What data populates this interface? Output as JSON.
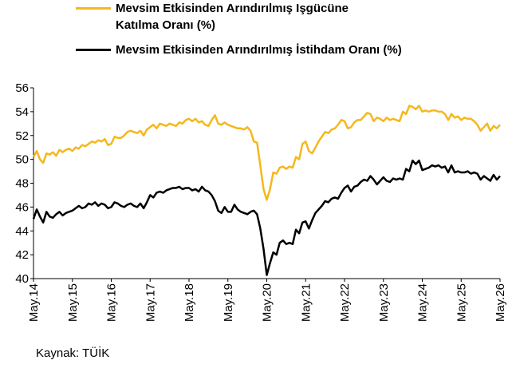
{
  "chart_data": {
    "type": "line",
    "source": "Kaynak: TÜİK",
    "categories": [
      "May.14",
      null,
      null,
      null,
      null,
      null,
      null,
      null,
      null,
      null,
      null,
      null,
      "May.15",
      null,
      null,
      null,
      null,
      null,
      null,
      null,
      null,
      null,
      null,
      null,
      "May.16",
      null,
      null,
      null,
      null,
      null,
      null,
      null,
      null,
      null,
      null,
      null,
      "May.17",
      null,
      null,
      null,
      null,
      null,
      null,
      null,
      null,
      null,
      null,
      null,
      "May.18",
      null,
      null,
      null,
      null,
      null,
      null,
      null,
      null,
      null,
      null,
      null,
      "May.19",
      null,
      null,
      null,
      null,
      null,
      null,
      null,
      null,
      null,
      null,
      null,
      "May.20",
      null,
      null,
      null,
      null,
      null,
      null,
      null,
      null,
      null,
      null,
      null,
      "May.21",
      null,
      null,
      null,
      null,
      null,
      null,
      null,
      null,
      null,
      null,
      null,
      "May.22",
      null,
      null,
      null,
      null,
      null,
      null,
      null,
      null,
      null,
      null,
      null,
      "May.23",
      null,
      null,
      null,
      null,
      null,
      null,
      null,
      null,
      null,
      null,
      null,
      "May.24",
      null,
      null,
      null,
      null,
      null,
      null,
      null,
      null,
      null,
      null,
      null,
      "May.25",
      null,
      null,
      null,
      null,
      null,
      null,
      null,
      null,
      null,
      null,
      null,
      "May.26"
    ],
    "series": [
      {
        "name": "Mevsim Etkisinden Arındırılmış Işgücüne Katılma Oranı (%)",
        "color": "#f5b81c",
        "values": [
          50.2,
          50.7,
          50.0,
          49.7,
          50.5,
          50.4,
          50.6,
          50.3,
          50.8,
          50.6,
          50.8,
          50.9,
          50.7,
          51.0,
          50.9,
          51.2,
          51.1,
          51.3,
          51.5,
          51.4,
          51.6,
          51.5,
          51.7,
          51.2,
          51.3,
          51.9,
          51.8,
          51.8,
          52.0,
          52.3,
          52.4,
          52.3,
          52.2,
          52.4,
          52.0,
          52.5,
          52.7,
          52.9,
          52.6,
          53.0,
          52.9,
          52.8,
          53.0,
          52.9,
          52.8,
          53.1,
          53.0,
          53.3,
          53.4,
          53.2,
          53.4,
          53.1,
          53.2,
          52.9,
          52.8,
          53.3,
          53.7,
          53.0,
          52.9,
          53.1,
          52.9,
          52.8,
          52.7,
          52.6,
          52.6,
          52.5,
          52.7,
          52.4,
          51.5,
          51.4,
          49.5,
          47.5,
          46.6,
          47.5,
          48.9,
          48.8,
          49.3,
          49.4,
          49.2,
          49.4,
          49.3,
          50.2,
          50.0,
          51.3,
          51.5,
          50.7,
          50.5,
          51.0,
          51.5,
          51.9,
          52.3,
          52.2,
          52.5,
          52.6,
          52.9,
          53.3,
          53.2,
          52.6,
          52.7,
          53.1,
          53.3,
          53.3,
          53.6,
          53.9,
          53.8,
          53.2,
          53.5,
          53.4,
          53.2,
          53.5,
          53.3,
          53.4,
          53.3,
          53.2,
          54.0,
          53.8,
          54.5,
          54.4,
          54.2,
          54.5,
          54.0,
          54.1,
          54.0,
          54.1,
          54.1,
          54.0,
          54.0,
          53.8,
          53.3,
          53.8,
          53.5,
          53.6,
          53.3,
          53.5,
          53.4,
          53.4,
          53.2,
          52.9,
          52.4,
          52.7,
          53.0,
          52.4,
          52.8,
          52.6,
          52.9
        ]
      },
      {
        "name": "Mevsim Etkisinden Arındırılmış İstihdam Oranı (%)",
        "color": "#000000",
        "values": [
          45.0,
          45.8,
          45.2,
          44.7,
          45.6,
          45.2,
          45.1,
          45.4,
          45.6,
          45.3,
          45.5,
          45.6,
          45.7,
          45.9,
          46.1,
          45.9,
          46.0,
          46.3,
          46.2,
          46.4,
          46.1,
          46.3,
          46.2,
          45.9,
          46.0,
          46.4,
          46.3,
          46.1,
          46.0,
          46.2,
          46.3,
          46.1,
          46.0,
          46.3,
          45.9,
          46.4,
          47.0,
          46.8,
          47.2,
          47.3,
          47.2,
          47.4,
          47.5,
          47.6,
          47.6,
          47.7,
          47.5,
          47.6,
          47.6,
          47.4,
          47.5,
          47.3,
          47.7,
          47.4,
          47.3,
          47.0,
          46.5,
          45.7,
          45.5,
          46.0,
          45.6,
          45.6,
          46.2,
          45.8,
          45.6,
          45.5,
          45.4,
          45.6,
          45.7,
          45.4,
          44.2,
          42.5,
          40.3,
          41.3,
          42.2,
          42.0,
          43.0,
          43.2,
          42.9,
          43.0,
          42.9,
          44.1,
          43.8,
          44.7,
          44.8,
          44.2,
          44.9,
          45.5,
          45.8,
          46.1,
          46.5,
          46.4,
          46.7,
          46.8,
          46.7,
          47.2,
          47.6,
          47.8,
          47.3,
          47.7,
          47.8,
          48.1,
          48.3,
          48.2,
          48.6,
          48.3,
          47.9,
          48.2,
          48.5,
          48.2,
          48.1,
          48.4,
          48.3,
          48.4,
          48.3,
          49.2,
          49.0,
          49.9,
          49.6,
          49.9,
          49.1,
          49.2,
          49.3,
          49.5,
          49.4,
          49.5,
          49.3,
          49.4,
          48.9,
          49.5,
          48.9,
          49.0,
          48.9,
          48.9,
          49.0,
          48.8,
          48.9,
          48.8,
          48.3,
          48.6,
          48.4,
          48.2,
          48.7,
          48.3,
          48.6
        ]
      }
    ],
    "ylim": [
      40,
      56
    ],
    "yticks": [
      40,
      42,
      44,
      46,
      48,
      50,
      52,
      54,
      56
    ],
    "grid": false
  }
}
